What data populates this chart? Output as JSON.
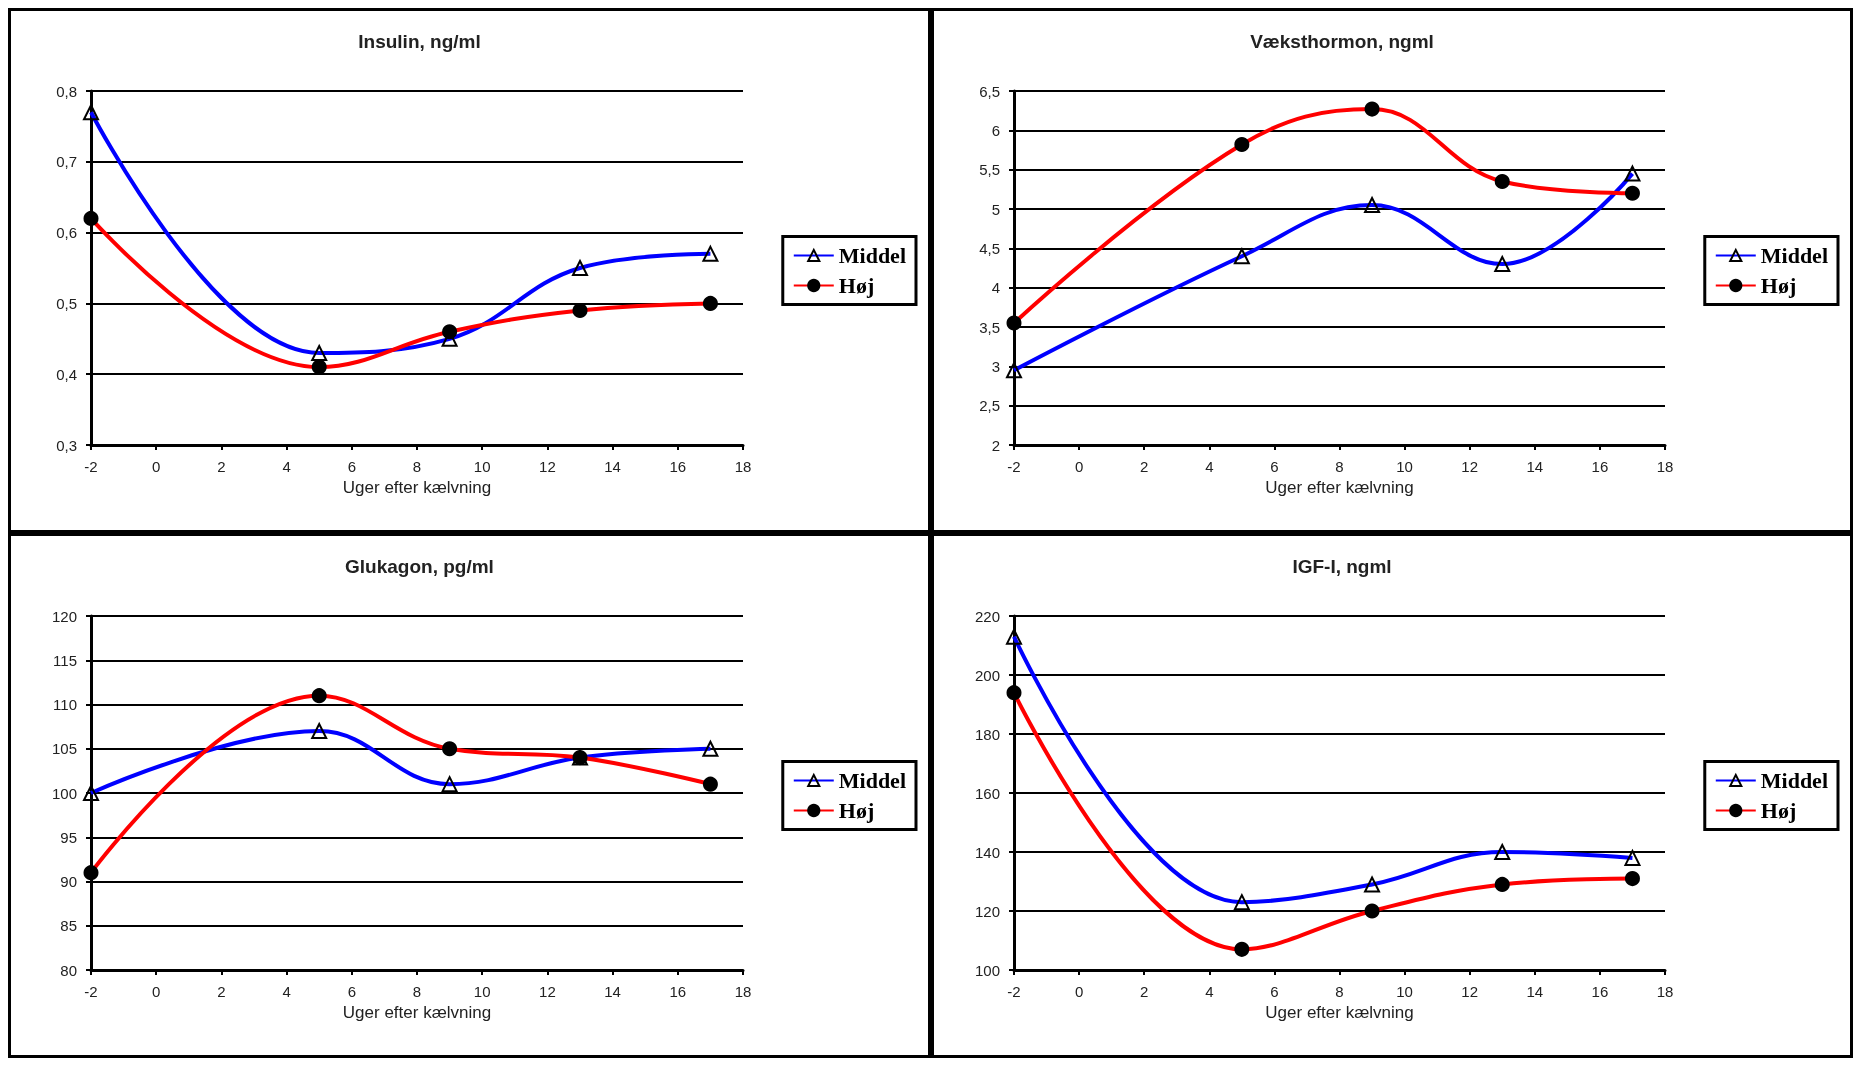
{
  "chart_data": [
    {
      "type": "line",
      "title": "Insulin, ng/ml",
      "xlabel": "Uger efter kælvning",
      "x": [
        -2,
        5,
        9,
        13,
        17
      ],
      "xlim": [
        -2,
        18
      ],
      "xticks": [
        -2,
        0,
        2,
        4,
        6,
        8,
        10,
        12,
        14,
        16,
        18
      ],
      "ylim": [
        0.3,
        0.8
      ],
      "yticks": [
        {
          "value": 0.3,
          "label": "0,3"
        },
        {
          "value": 0.4,
          "label": "0,4"
        },
        {
          "value": 0.5,
          "label": "0,5"
        },
        {
          "value": 0.6,
          "label": "0,6"
        },
        {
          "value": 0.7,
          "label": "0,7"
        },
        {
          "value": 0.8,
          "label": "0,8"
        }
      ],
      "grid": "y",
      "legend": "right",
      "series": [
        {
          "name": "Middel",
          "color": "#0000ff",
          "marker": "triangle",
          "values": [
            0.77,
            0.43,
            0.45,
            0.55,
            0.57
          ]
        },
        {
          "name": "Høj",
          "color": "#ff0000",
          "marker": "circle",
          "values": [
            0.62,
            0.41,
            0.46,
            0.49,
            0.5
          ]
        }
      ]
    },
    {
      "type": "line",
      "title": "Væksthormon, ngml",
      "xlabel": "Uger efter kælvning",
      "x": [
        -2,
        5,
        9,
        13,
        17
      ],
      "xlim": [
        -2,
        18
      ],
      "xticks": [
        -2,
        0,
        2,
        4,
        6,
        8,
        10,
        12,
        14,
        16,
        18
      ],
      "ylim": [
        2,
        6.5
      ],
      "yticks": [
        2,
        {
          "value": 2.5,
          "label": "2,5"
        },
        3,
        {
          "value": 3.5,
          "label": "3,5"
        },
        4,
        {
          "value": 4.5,
          "label": "4,5"
        },
        5,
        {
          "value": 5.5,
          "label": "5,5"
        },
        6,
        {
          "value": 6.5,
          "label": "6,5"
        }
      ],
      "grid": "y",
      "legend": "right",
      "series": [
        {
          "name": "Middel",
          "color": "#0000ff",
          "marker": "triangle",
          "values": [
            2.95,
            4.4,
            5.05,
            4.3,
            5.45
          ]
        },
        {
          "name": "Høj",
          "color": "#ff0000",
          "marker": "circle",
          "values": [
            3.55,
            5.82,
            6.27,
            5.35,
            5.2
          ]
        }
      ]
    },
    {
      "type": "line",
      "title": "Glukagon, pg/ml",
      "xlabel": "Uger efter kælvning",
      "x": [
        -2,
        5,
        9,
        13,
        17
      ],
      "xlim": [
        -2,
        18
      ],
      "xticks": [
        -2,
        0,
        2,
        4,
        6,
        8,
        10,
        12,
        14,
        16,
        18
      ],
      "ylim": [
        80,
        120
      ],
      "yticks": [
        80,
        85,
        90,
        95,
        100,
        105,
        110,
        115,
        120
      ],
      "grid": "y",
      "legend": "right",
      "series": [
        {
          "name": "Middel",
          "color": "#0000ff",
          "marker": "triangle",
          "values": [
            100,
            107,
            101,
            104,
            105
          ]
        },
        {
          "name": "Høj",
          "color": "#ff0000",
          "marker": "circle",
          "values": [
            91,
            111,
            105,
            104,
            101
          ]
        }
      ]
    },
    {
      "type": "line",
      "title": "IGF-I, ngml",
      "xlabel": "Uger efter kælvning",
      "x": [
        -2,
        5,
        9,
        13,
        17
      ],
      "xlim": [
        -2,
        18
      ],
      "xticks": [
        -2,
        0,
        2,
        4,
        6,
        8,
        10,
        12,
        14,
        16,
        18
      ],
      "ylim": [
        100,
        220
      ],
      "yticks": [
        100,
        120,
        140,
        160,
        180,
        200,
        220
      ],
      "grid": "y",
      "legend": "right",
      "series": [
        {
          "name": "Middel",
          "color": "#0000ff",
          "marker": "triangle",
          "values": [
            213,
            123,
            129,
            140,
            138
          ]
        },
        {
          "name": "Høj",
          "color": "#ff0000",
          "marker": "circle",
          "values": [
            194,
            107,
            120,
            129,
            131
          ]
        }
      ]
    }
  ]
}
